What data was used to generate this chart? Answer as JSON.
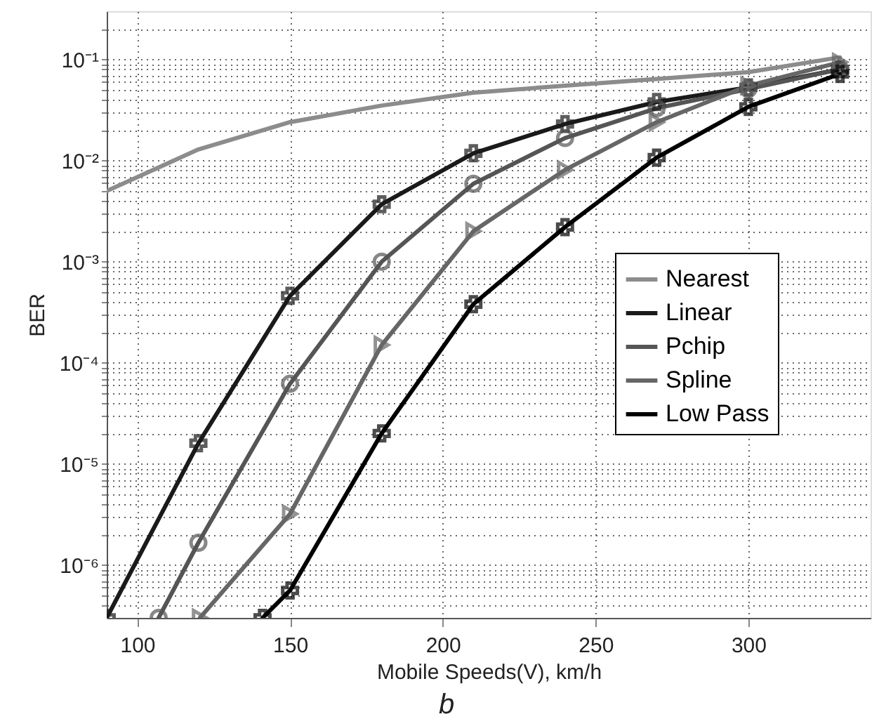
{
  "chart_data": {
    "type": "line",
    "xlabel": "Mobile Speeds(V), km/h",
    "ylabel": "BER",
    "annotations": [
      "b"
    ],
    "log": "y",
    "grid": true,
    "legend": "right",
    "line_style": "solid",
    "xlim": [
      90,
      340
    ],
    "xticks": [
      100,
      150,
      200,
      250,
      300
    ],
    "ylim": [
      3e-07,
      0.3
    ],
    "yticks": [
      {
        "value": 4e-07,
        "label": null
      },
      {
        "value": 5e-07,
        "label": null
      },
      {
        "value": 6e-07,
        "label": null
      },
      {
        "value": 7e-07,
        "label": null
      },
      {
        "value": 8e-07,
        "label": null
      },
      {
        "value": 9e-07,
        "label": null
      },
      {
        "value": 1e-06,
        "label": "10⁻⁶"
      },
      {
        "value": 2e-06,
        "label": null
      },
      {
        "value": 3e-06,
        "label": null
      },
      {
        "value": 4e-06,
        "label": null
      },
      {
        "value": 5e-06,
        "label": null
      },
      {
        "value": 6e-06,
        "label": null
      },
      {
        "value": 7e-06,
        "label": null
      },
      {
        "value": 8e-06,
        "label": null
      },
      {
        "value": 9e-06,
        "label": null
      },
      {
        "value": 1e-05,
        "label": "10⁻⁵"
      },
      {
        "value": 2e-05,
        "label": null
      },
      {
        "value": 3e-05,
        "label": null
      },
      {
        "value": 4e-05,
        "label": null
      },
      {
        "value": 5e-05,
        "label": null
      },
      {
        "value": 6e-05,
        "label": null
      },
      {
        "value": 7e-05,
        "label": null
      },
      {
        "value": 8e-05,
        "label": null
      },
      {
        "value": 9e-05,
        "label": null
      },
      {
        "value": 0.0001,
        "label": "10⁻⁴"
      },
      {
        "value": 0.0002,
        "label": null
      },
      {
        "value": 0.0003,
        "label": null
      },
      {
        "value": 0.0004,
        "label": null
      },
      {
        "value": 0.0005,
        "label": null
      },
      {
        "value": 0.0006,
        "label": null
      },
      {
        "value": 0.0007,
        "label": null
      },
      {
        "value": 0.0008,
        "label": null
      },
      {
        "value": 0.0009,
        "label": null
      },
      {
        "value": 0.001,
        "label": "10⁻³"
      },
      {
        "value": 0.002,
        "label": null
      },
      {
        "value": 0.003,
        "label": null
      },
      {
        "value": 0.004,
        "label": null
      },
      {
        "value": 0.005,
        "label": null
      },
      {
        "value": 0.006,
        "label": null
      },
      {
        "value": 0.007,
        "label": null
      },
      {
        "value": 0.008,
        "label": null
      },
      {
        "value": 0.009,
        "label": null
      },
      {
        "value": 0.01,
        "label": "10⁻²"
      },
      {
        "value": 0.02,
        "label": null
      },
      {
        "value": 0.03,
        "label": null
      },
      {
        "value": 0.04,
        "label": null
      },
      {
        "value": 0.05,
        "label": null
      },
      {
        "value": 0.06,
        "label": null
      },
      {
        "value": 0.07,
        "label": null
      },
      {
        "value": 0.08,
        "label": null
      },
      {
        "value": 0.09,
        "label": null
      },
      {
        "value": 0.1,
        "label": "10⁻¹"
      },
      {
        "value": 0.2,
        "label": null
      }
    ],
    "series": [
      {
        "name": "Nearest",
        "color": "#8c8c8c",
        "marker": "none",
        "x": [
          90,
          120,
          150,
          180,
          210,
          240,
          270,
          300,
          330
        ],
        "values": [
          0.005,
          0.0129,
          0.024,
          0.035,
          0.047,
          0.055,
          0.064,
          0.075,
          0.105
        ]
      },
      {
        "name": "Linear",
        "color": "#1a1a1a",
        "marker": "cross",
        "x": [
          90,
          120,
          150,
          180,
          210,
          240,
          270,
          300,
          330
        ],
        "values": [
          3e-07,
          1.6e-05,
          0.00046,
          0.0037,
          0.0118,
          0.023,
          0.038,
          0.053,
          0.08
        ]
      },
      {
        "name": "Pchip",
        "color": "#555555",
        "marker": "circle",
        "x": [
          107,
          120,
          150,
          180,
          210,
          240,
          270,
          300,
          330
        ],
        "values": [
          3e-07,
          1.66e-06,
          6.2e-05,
          0.001,
          0.0059,
          0.0167,
          0.033,
          0.051,
          0.08
        ]
      },
      {
        "name": "Spline",
        "color": "#666666",
        "marker": "triangle",
        "x": [
          120.5,
          150,
          180,
          210,
          240,
          270,
          300,
          330
        ],
        "values": [
          3e-07,
          3.2e-06,
          0.00015,
          0.002,
          0.0081,
          0.024,
          0.055,
          0.094
        ]
      },
      {
        "name": "Low Pass",
        "color": "#000000",
        "marker": "cross",
        "x": [
          141,
          150,
          180,
          210,
          240,
          270,
          300,
          330
        ],
        "values": [
          3e-07,
          5.6e-07,
          2e-05,
          0.00038,
          0.0022,
          0.0107,
          0.034,
          0.072
        ]
      }
    ]
  }
}
